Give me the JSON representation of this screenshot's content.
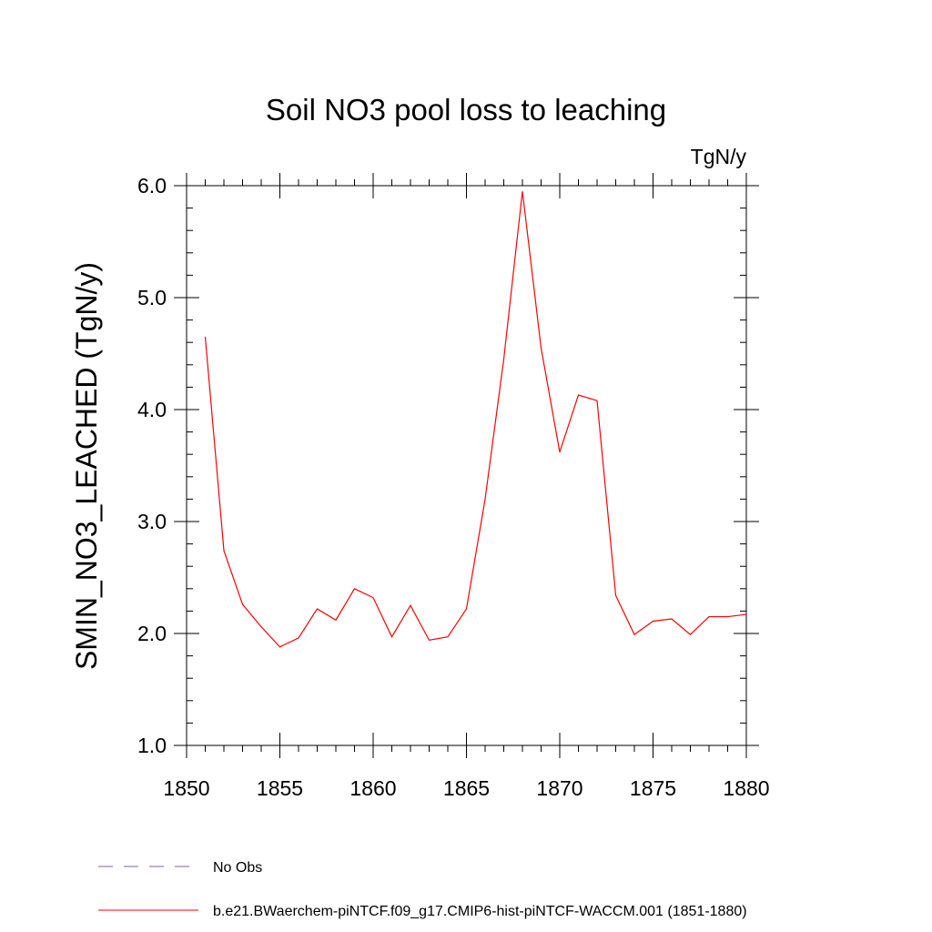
{
  "chart_data": {
    "type": "line",
    "title": "Soil NO3 pool loss to leaching",
    "units_label": "TgN/y",
    "ylabel": "SMIN_NO3_LEACHED  (TgN/y)",
    "xlabel": "",
    "xlim": [
      1850,
      1880
    ],
    "ylim": [
      1.0,
      6.0
    ],
    "x_ticks": [
      1850,
      1855,
      1860,
      1865,
      1870,
      1875,
      1880
    ],
    "y_ticks": [
      "1.0",
      "2.0",
      "3.0",
      "4.0",
      "5.0",
      "6.0"
    ],
    "x_minor_step": 1,
    "y_minor_step": 0.2,
    "grid": false,
    "legend_position": "bottom-left",
    "series": [
      {
        "name": "No Obs",
        "color": "#7f5fb0",
        "style": "dashed",
        "x": [],
        "y": []
      },
      {
        "name": "b.e21.BWaerchem-piNTCF.f09_g17.CMIP6-hist-piNTCF-WACCM.001 (1851-1880)",
        "color": "#ff0000",
        "style": "solid",
        "x": [
          1851,
          1852,
          1853,
          1854,
          1855,
          1856,
          1857,
          1858,
          1859,
          1860,
          1861,
          1862,
          1863,
          1864,
          1865,
          1866,
          1867,
          1868,
          1869,
          1870,
          1871,
          1872,
          1873,
          1874,
          1875,
          1876,
          1877,
          1878,
          1879,
          1880
        ],
        "y": [
          4.65,
          2.74,
          2.26,
          2.06,
          1.88,
          1.96,
          2.22,
          2.12,
          2.4,
          2.32,
          1.97,
          2.25,
          1.94,
          1.97,
          2.22,
          3.2,
          4.45,
          5.95,
          4.55,
          3.62,
          4.13,
          4.08,
          2.34,
          1.99,
          2.11,
          2.13,
          1.99,
          2.15,
          2.15,
          2.17
        ]
      }
    ]
  }
}
